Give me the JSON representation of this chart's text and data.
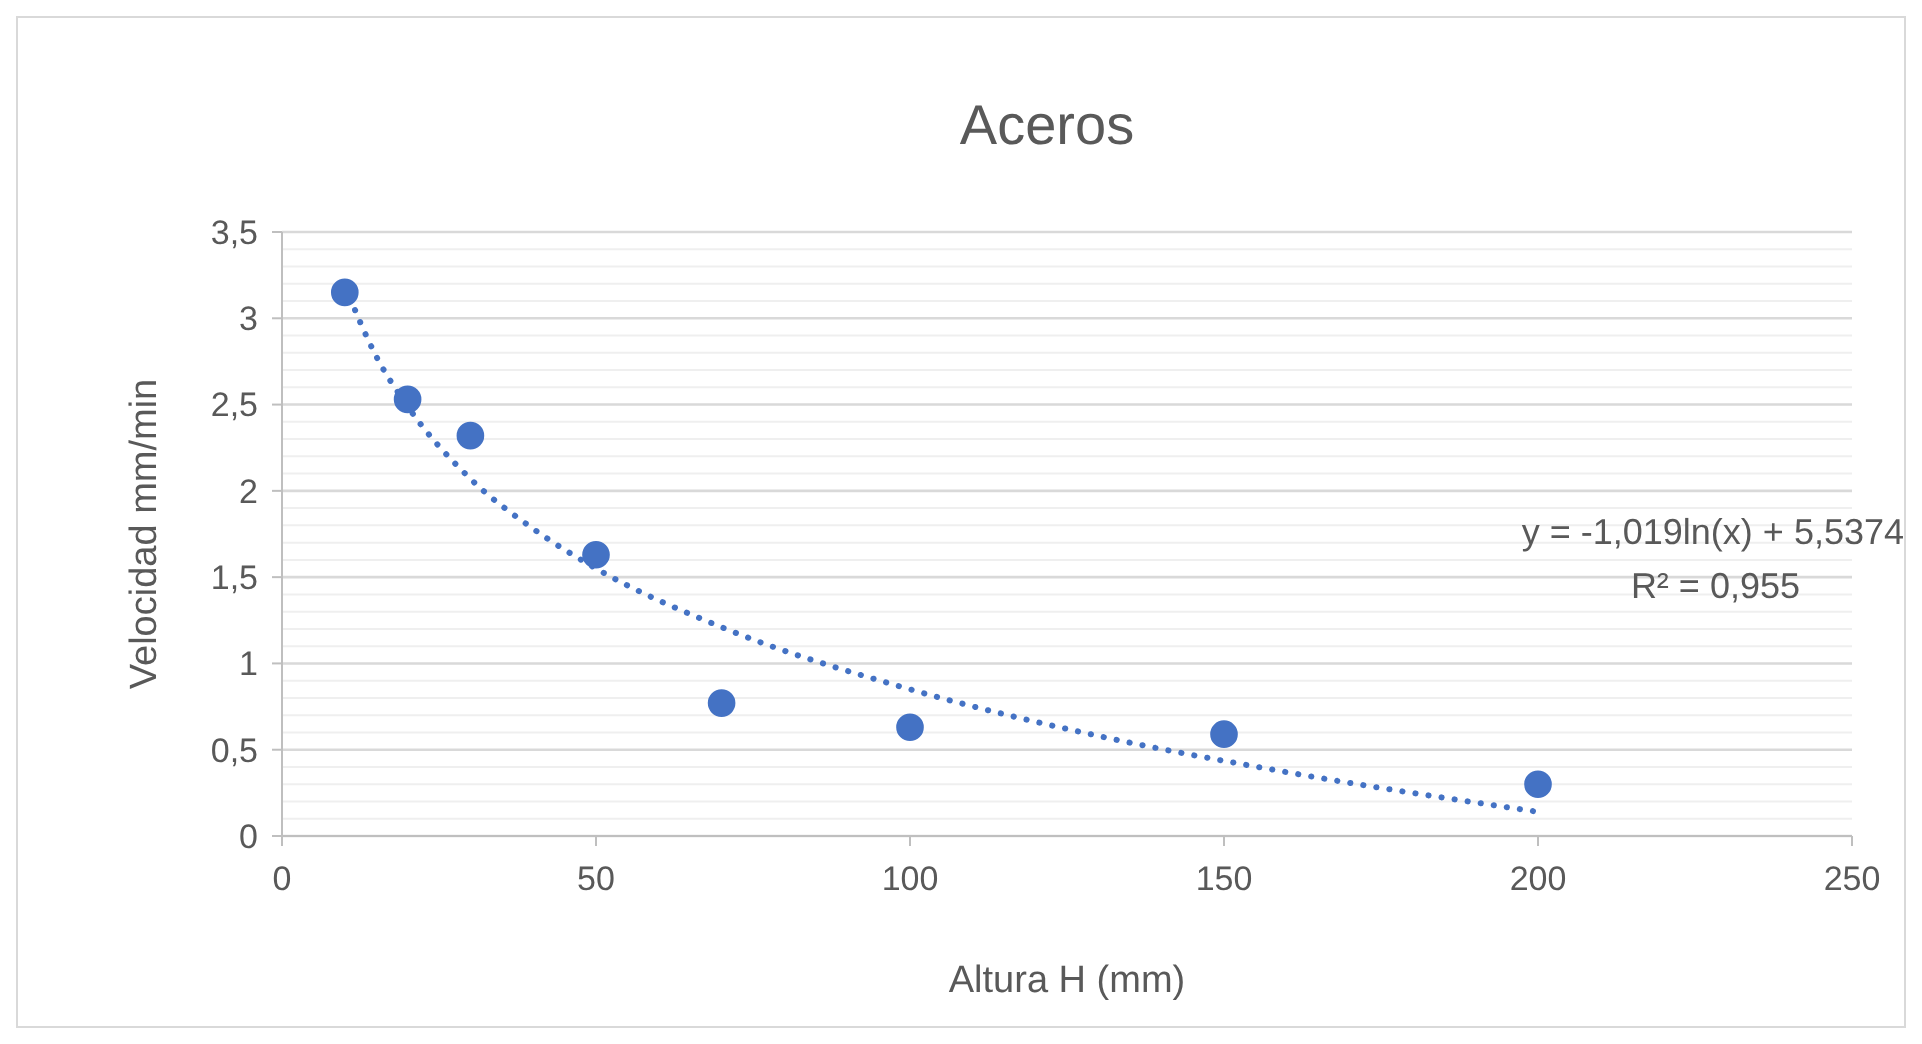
{
  "chart_data": {
    "type": "scatter",
    "title": "Aceros",
    "xlabel": "Altura H (mm)",
    "ylabel": "Velocidad mm/min",
    "xlim": [
      0,
      250
    ],
    "xticks": [
      0,
      50,
      100,
      150,
      200,
      250
    ],
    "ylim": [
      0,
      3.5
    ],
    "yticks": [
      {
        "value": 0,
        "label": "0"
      },
      {
        "value": 0.1,
        "label": null
      },
      {
        "value": 0.2,
        "label": null
      },
      {
        "value": 0.3,
        "label": null
      },
      {
        "value": 0.4,
        "label": null
      },
      {
        "value": 0.5,
        "label": "0,5"
      },
      {
        "value": 0.6,
        "label": null
      },
      {
        "value": 0.7,
        "label": null
      },
      {
        "value": 0.8,
        "label": null
      },
      {
        "value": 0.9,
        "label": null
      },
      {
        "value": 1,
        "label": "1"
      },
      {
        "value": 1.1,
        "label": null
      },
      {
        "value": 1.2,
        "label": null
      },
      {
        "value": 1.3,
        "label": null
      },
      {
        "value": 1.4,
        "label": null
      },
      {
        "value": 1.5,
        "label": "1,5"
      },
      {
        "value": 1.6,
        "label": null
      },
      {
        "value": 1.7,
        "label": null
      },
      {
        "value": 1.8,
        "label": null
      },
      {
        "value": 1.9,
        "label": null
      },
      {
        "value": 2,
        "label": "2"
      },
      {
        "value": 2.1,
        "label": null
      },
      {
        "value": 2.2,
        "label": null
      },
      {
        "value": 2.3,
        "label": null
      },
      {
        "value": 2.4,
        "label": null
      },
      {
        "value": 2.5,
        "label": "2,5"
      },
      {
        "value": 2.6,
        "label": null
      },
      {
        "value": 2.7,
        "label": null
      },
      {
        "value": 2.8,
        "label": null
      },
      {
        "value": 2.9,
        "label": null
      },
      {
        "value": 3,
        "label": "3"
      },
      {
        "value": 3.1,
        "label": null
      },
      {
        "value": 3.2,
        "label": null
      },
      {
        "value": 3.3,
        "label": null
      },
      {
        "value": 3.4,
        "label": null
      },
      {
        "value": 3.5,
        "label": "3,5"
      }
    ],
    "grid": "y",
    "marker": "circle",
    "series": [
      {
        "color": "#4472c4",
        "x": [
          10,
          20,
          30,
          50,
          70,
          100,
          150,
          200
        ],
        "values": [
          3.15,
          2.53,
          2.32,
          1.63,
          0.77,
          0.63,
          0.59,
          0.3
        ]
      },
      {
        "type": "line",
        "color": "#4472c4",
        "line_style": "dotted",
        "marker": "none",
        "x": [
          10,
          15,
          20,
          30,
          40,
          50,
          70,
          100,
          130,
          160,
          200
        ],
        "values": [
          3.19,
          2.78,
          2.49,
          2.07,
          1.78,
          1.55,
          1.21,
          0.85,
          0.58,
          0.37,
          0.14
        ]
      }
    ],
    "annotations": [
      "y = -1,019ln(x) + 5,5374",
      "R² = 0,955"
    ]
  }
}
